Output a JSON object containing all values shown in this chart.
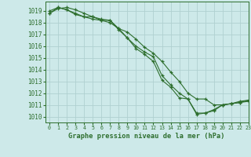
{
  "title": "Graphe pression niveau de la mer (hPa)",
  "background_color": "#cde9e9",
  "grid_color": "#b0d0d0",
  "line_color": "#2d6e2d",
  "xlim": [
    -0.5,
    23
  ],
  "ylim": [
    1009.5,
    1019.8
  ],
  "yticks": [
    1010,
    1011,
    1012,
    1013,
    1014,
    1015,
    1016,
    1017,
    1018,
    1019
  ],
  "xticks": [
    0,
    1,
    2,
    3,
    4,
    5,
    6,
    7,
    8,
    9,
    10,
    11,
    12,
    13,
    14,
    15,
    16,
    17,
    18,
    19,
    20,
    21,
    22,
    23
  ],
  "series": [
    [
      1019.0,
      1019.3,
      1019.1,
      1018.8,
      1018.5,
      1018.3,
      1018.2,
      1018.2,
      1017.4,
      1016.7,
      1015.8,
      1015.3,
      1014.7,
      1013.1,
      1012.5,
      1011.6,
      1011.5,
      1010.3,
      1010.3,
      1010.5,
      1011.0,
      1011.1,
      1011.3,
      1011.4
    ],
    [
      1018.8,
      1019.3,
      1019.1,
      1018.7,
      1018.5,
      1018.5,
      1018.2,
      1018.0,
      1017.5,
      1016.7,
      1016.0,
      1015.5,
      1015.1,
      1013.5,
      1012.7,
      1012.0,
      1011.5,
      1010.2,
      1010.3,
      1010.6,
      1011.0,
      1011.1,
      1011.2,
      1011.4
    ],
    [
      1018.8,
      1019.2,
      1019.3,
      1019.1,
      1018.8,
      1018.5,
      1018.3,
      1018.2,
      1017.5,
      1017.2,
      1016.6,
      1015.9,
      1015.4,
      1014.7,
      1013.8,
      1013.0,
      1012.0,
      1011.5,
      1011.5,
      1011.0,
      1011.0,
      1011.1,
      1011.2,
      1011.3
    ]
  ]
}
